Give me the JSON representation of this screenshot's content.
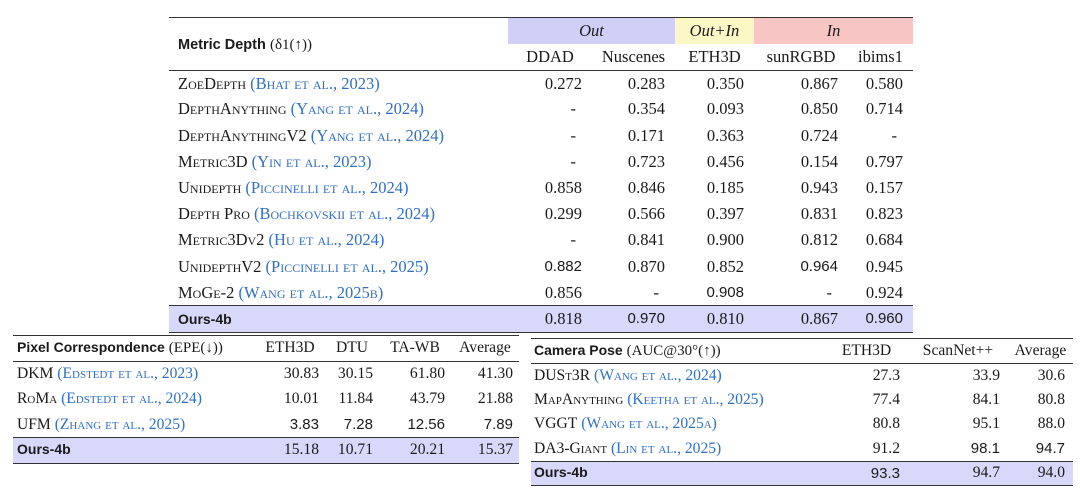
{
  "metric_depth": {
    "title": "Metric Depth",
    "metric": "(δ1(↑))",
    "groups": [
      {
        "label": "Out",
        "color": "#cfcff8"
      },
      {
        "label": "Out+In",
        "color": "#fbf8c5"
      },
      {
        "label": "In",
        "color": "#f8c5c5"
      }
    ],
    "columns": [
      "DDAD",
      "Nuscenes",
      "ETH3D",
      "sunRGBD",
      "ibims1"
    ],
    "rows": [
      {
        "method": "ZoeDepth",
        "cite": "(Bhat et al., 2023)",
        "values": [
          "0.272",
          "0.283",
          "0.350",
          "0.867",
          "0.580"
        ]
      },
      {
        "method": "DepthAnything",
        "cite": "(Yang et al., 2024)",
        "values": [
          "-",
          "0.354",
          "0.093",
          "0.850",
          "0.714"
        ]
      },
      {
        "method": "DepthAnythingV2",
        "cite": "(Yang et al., 2024)",
        "values": [
          "-",
          "0.171",
          "0.363",
          "0.724",
          "-"
        ]
      },
      {
        "method": "Metric3D",
        "cite": "(Yin et al., 2023)",
        "values": [
          "-",
          "0.723",
          "0.456",
          "0.154",
          "0.797"
        ]
      },
      {
        "method": "Unidepth",
        "cite": "(Piccinelli et al., 2024)",
        "values": [
          "0.858",
          "0.846",
          "0.185",
          "0.943",
          "0.157"
        ]
      },
      {
        "method": "Depth Pro",
        "cite": "(Bochkovskii et al., 2024)",
        "values": [
          "0.299",
          "0.566",
          "0.397",
          "0.831",
          "0.823"
        ]
      },
      {
        "method": "Metric3Dv2",
        "cite": "(Hu et al., 2024)",
        "values": [
          "-",
          "0.841",
          "0.900",
          "0.812",
          "0.684"
        ]
      },
      {
        "method": "UnidepthV2",
        "cite": "(Piccinelli et al., 2025)",
        "values": [
          "0.882",
          "0.870",
          "0.852",
          "0.964",
          "0.945"
        ]
      },
      {
        "method": "MoGe-2",
        "cite": "(Wang et al., 2025b)",
        "values": [
          "0.856",
          "-",
          "0.908",
          "-",
          "0.924"
        ]
      },
      {
        "method": "Ours-4b",
        "cite": "",
        "values": [
          "0.818",
          "0.970",
          "0.810",
          "0.867",
          "0.960"
        ]
      }
    ]
  },
  "pixel_correspondence": {
    "title": "Pixel Correspondence",
    "metric": "(EPE(↓))",
    "columns": [
      "ETH3D",
      "DTU",
      "TA-WB",
      "Average"
    ],
    "rows": [
      {
        "method": "DKM",
        "cite": "(Edstedt et al., 2023)",
        "values": [
          "30.83",
          "30.15",
          "61.80",
          "41.30"
        ]
      },
      {
        "method": "RoMa",
        "cite": "(Edstedt et al., 2024)",
        "values": [
          "10.01",
          "11.84",
          "43.79",
          "21.88"
        ]
      },
      {
        "method": "UFM",
        "cite": "(Zhang et al., 2025)",
        "values": [
          "3.83",
          "7.28",
          "12.56",
          "7.89"
        ]
      },
      {
        "method": "Ours-4b",
        "cite": "",
        "values": [
          "15.18",
          "10.71",
          "20.21",
          "15.37"
        ]
      }
    ]
  },
  "camera_pose": {
    "title": "Camera Pose",
    "metric": "(AUC@30°(↑))",
    "columns": [
      "ETH3D",
      "ScanNet++",
      "Average"
    ],
    "rows": [
      {
        "method": "DUSt3R",
        "cite": "(Wang et al., 2024)",
        "values": [
          "27.3",
          "33.9",
          "30.6"
        ]
      },
      {
        "method": "MapAnything",
        "cite": "(Keetha et al., 2025)",
        "values": [
          "77.4",
          "84.1",
          "80.8"
        ]
      },
      {
        "method": "VGGT",
        "cite": "(Wang et al., 2025a)",
        "values": [
          "80.8",
          "95.1",
          "88.0"
        ]
      },
      {
        "method": "DA3-Giant",
        "cite": "(Lin et al., 2025)",
        "values": [
          "91.2",
          "98.1",
          "94.7"
        ]
      },
      {
        "method": "Ours-4b",
        "cite": "",
        "values": [
          "93.3",
          "94.7",
          "94.0"
        ]
      }
    ]
  }
}
